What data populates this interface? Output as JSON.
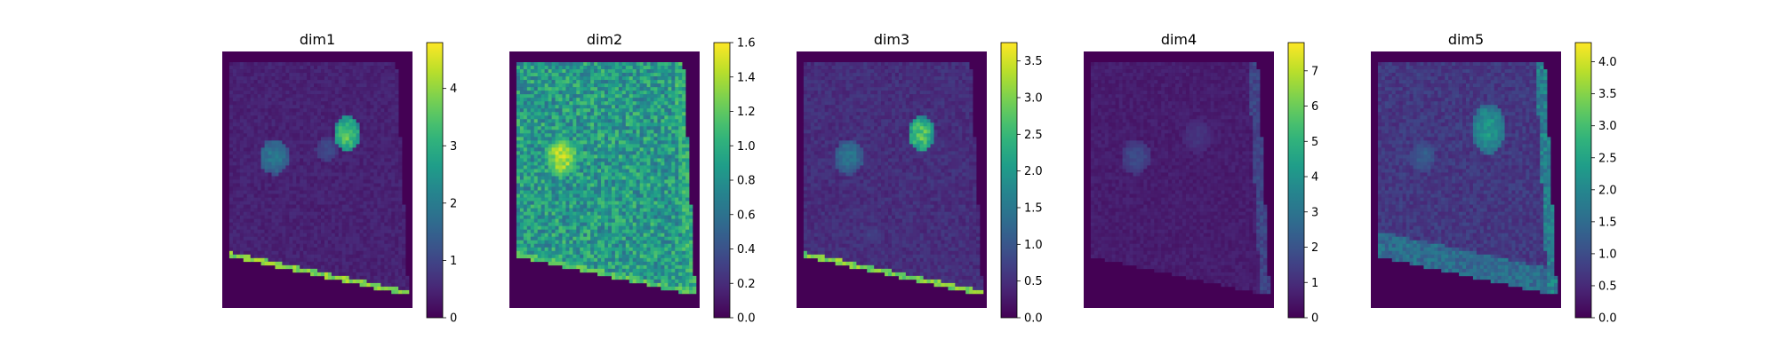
{
  "chart_data": [
    {
      "type": "heatmap",
      "title": "dim1",
      "colormap": "viridis",
      "colorbar": {
        "range": [
          0,
          4.8
        ],
        "ticks": [
          0,
          1,
          2,
          3,
          4
        ],
        "tick_labels": [
          "0",
          "1",
          "2",
          "3",
          "4"
        ]
      },
      "axes_visible": false,
      "hotspots": [
        {
          "cx": 0.66,
          "cy": 0.32,
          "rx": 0.07,
          "ry": 0.07,
          "value": 3.8
        },
        {
          "cx": 0.27,
          "cy": 0.41,
          "rx": 0.08,
          "ry": 0.07,
          "value": 2.1
        },
        {
          "cx": 0.55,
          "cy": 0.38,
          "rx": 0.06,
          "ry": 0.05,
          "value": 1.2
        }
      ],
      "tissue_level": 0.55,
      "edge_line_value": 4.3,
      "right_edge_value": 0
    },
    {
      "type": "heatmap",
      "title": "dim2",
      "colormap": "viridis",
      "colorbar": {
        "range": [
          0,
          1.6
        ],
        "ticks": [
          0,
          0.2,
          0.4,
          0.6,
          0.8,
          1.0,
          1.2,
          1.4,
          1.6
        ],
        "tick_labels": [
          "0.0",
          "0.2",
          "0.4",
          "0.6",
          "0.8",
          "1.0",
          "1.2",
          "1.4",
          "1.6"
        ]
      },
      "axes_visible": false,
      "hotspots": [
        {
          "cx": 0.27,
          "cy": 0.41,
          "rx": 0.09,
          "ry": 0.08,
          "value": 1.55
        },
        {
          "cx": 0.66,
          "cy": 0.32,
          "rx": 0.07,
          "ry": 0.07,
          "value": 0.3
        },
        {
          "cx": 0.4,
          "cy": 0.72,
          "rx": 0.12,
          "ry": 0.1,
          "value": 0.45
        }
      ],
      "tissue_level": 1.05,
      "edge_line_value": 1.3,
      "right_edge_value": 1.2
    },
    {
      "type": "heatmap",
      "title": "dim3",
      "colormap": "viridis",
      "colorbar": {
        "range": [
          0,
          3.75
        ],
        "ticks": [
          0,
          0.5,
          1.0,
          1.5,
          2.0,
          2.5,
          3.0,
          3.5
        ],
        "tick_labels": [
          "0.0",
          "0.5",
          "1.0",
          "1.5",
          "2.0",
          "2.5",
          "3.0",
          "3.5"
        ]
      },
      "axes_visible": false,
      "hotspots": [
        {
          "cx": 0.66,
          "cy": 0.32,
          "rx": 0.07,
          "ry": 0.07,
          "value": 3.0
        },
        {
          "cx": 0.27,
          "cy": 0.41,
          "rx": 0.08,
          "ry": 0.07,
          "value": 1.6
        },
        {
          "cx": 0.4,
          "cy": 0.72,
          "rx": 0.05,
          "ry": 0.04,
          "value": 0.8
        }
      ],
      "tissue_level": 0.6,
      "edge_line_value": 3.3,
      "right_edge_value": 0
    },
    {
      "type": "heatmap",
      "title": "dim4",
      "colormap": "viridis",
      "colorbar": {
        "range": [
          0,
          7.8
        ],
        "ticks": [
          0,
          1,
          2,
          3,
          4,
          5,
          6,
          7
        ],
        "tick_labels": [
          "0",
          "1",
          "2",
          "3",
          "4",
          "5",
          "6",
          "7"
        ]
      },
      "axes_visible": false,
      "hotspots": [
        {
          "cx": 0.27,
          "cy": 0.41,
          "rx": 0.08,
          "ry": 0.07,
          "value": 1.9
        },
        {
          "cx": 0.6,
          "cy": 0.33,
          "rx": 0.08,
          "ry": 0.07,
          "value": 1.3
        }
      ],
      "tissue_level": 0.75,
      "edge_line_value": 0,
      "right_edge_value": 2.0
    },
    {
      "type": "heatmap",
      "title": "dim5",
      "colormap": "viridis",
      "colorbar": {
        "range": [
          0,
          4.3
        ],
        "ticks": [
          0,
          0.5,
          1.0,
          1.5,
          2.0,
          2.5,
          3.0,
          3.5,
          4.0
        ],
        "tick_labels": [
          "0.0",
          "0.5",
          "1.0",
          "1.5",
          "2.0",
          "2.5",
          "3.0",
          "3.5",
          "4.0"
        ]
      },
      "axes_visible": false,
      "hotspots": [
        {
          "cx": 0.62,
          "cy": 0.3,
          "rx": 0.09,
          "ry": 0.1,
          "value": 2.5
        },
        {
          "cx": 0.27,
          "cy": 0.41,
          "rx": 0.07,
          "ry": 0.06,
          "value": 1.4
        }
      ],
      "tissue_level": 0.85,
      "edge_line_value": 0,
      "right_edge_value": 2.3,
      "bottom_band_value": 1.9
    }
  ]
}
